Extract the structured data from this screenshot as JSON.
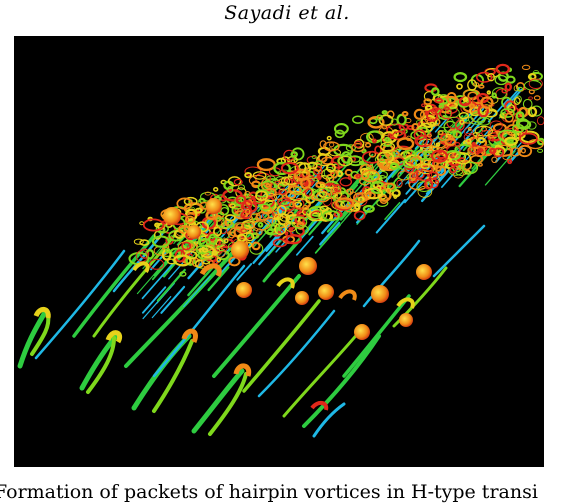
{
  "header": {
    "running_head": "Sayadi et al."
  },
  "figure": {
    "colormap": [
      "#1fb8e6",
      "#2ecc40",
      "#7fd81c",
      "#e6d21a",
      "#f08a16",
      "#e0281a"
    ],
    "background": "#000000"
  },
  "caption": {
    "text": "Formation of packets of hairpin vortices in H-type transi"
  }
}
